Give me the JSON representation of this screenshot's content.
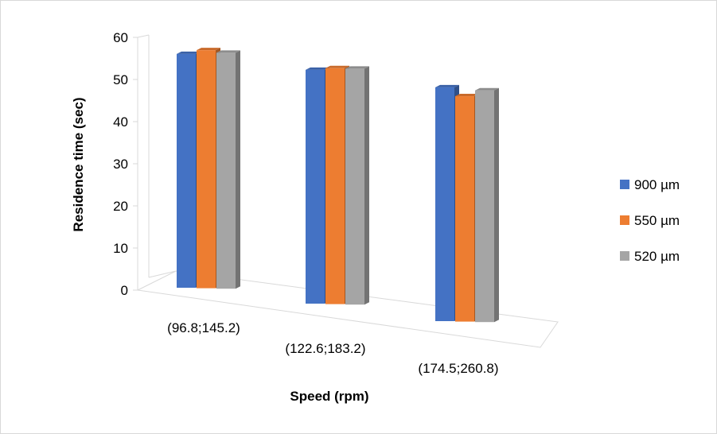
{
  "chart_data": {
    "type": "bar",
    "variant": "3d-clustered-column",
    "title": "",
    "xlabel": "Speed (rpm)",
    "ylabel": "Residence time (sec)",
    "ylim": [
      0,
      60
    ],
    "yticks": [
      0,
      10,
      20,
      30,
      40,
      50,
      60
    ],
    "categories": [
      "(96.8;145.2)",
      "(122.6;183.2)",
      "(174.5;260.8)"
    ],
    "series": [
      {
        "name": "900 µm",
        "color": "#4472C4",
        "values": [
          55.5,
          55.5,
          55.5
        ]
      },
      {
        "name": "550 µm",
        "color": "#ED7D31",
        "values": [
          56.5,
          56.0,
          53.5
        ]
      },
      {
        "name": "520 µm",
        "color": "#A5A5A5",
        "values": [
          56.0,
          56.0,
          55.0
        ]
      }
    ],
    "grid": false,
    "legend_position": "right"
  }
}
